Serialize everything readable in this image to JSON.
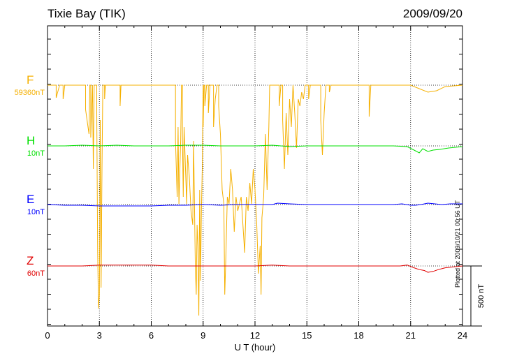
{
  "title": "Tixie Bay (TIK)",
  "date": "2009/09/20",
  "footer": "Plotted at 2009/10/21 00:56 UT",
  "chart_data": {
    "type": "line",
    "title": "Tixie Bay (TIK)",
    "date": "2009/09/20",
    "xlabel": "U T (hour)",
    "xlim": [
      0,
      24
    ],
    "x_ticks": [
      "0",
      "3",
      "6",
      "9",
      "12",
      "15",
      "18",
      "21",
      "24"
    ],
    "scale_bar_label": "500 nT",
    "grid": true,
    "series": [
      {
        "name": "F",
        "scale_label": "59360nT",
        "color": "#f5b000",
        "points": [
          [
            0,
            0
          ],
          [
            0.5,
            0
          ],
          [
            0.5,
            -18
          ],
          [
            0.7,
            0
          ],
          [
            0.9,
            0
          ],
          [
            0.9,
            -20
          ],
          [
            1.0,
            0
          ],
          [
            2.2,
            0
          ],
          [
            2.2,
            -35
          ],
          [
            2.4,
            -70
          ],
          [
            2.45,
            0
          ],
          [
            2.5,
            0
          ],
          [
            2.5,
            -75
          ],
          [
            2.6,
            0
          ],
          [
            2.65,
            -120
          ],
          [
            2.7,
            0
          ],
          [
            2.85,
            0
          ],
          [
            2.85,
            -40
          ],
          [
            2.9,
            -240
          ],
          [
            2.95,
            -320
          ],
          [
            3.0,
            -300
          ],
          [
            3.05,
            -50
          ],
          [
            3.1,
            -290
          ],
          [
            3.15,
            -120
          ],
          [
            3.2,
            0
          ],
          [
            3.3,
            0
          ],
          [
            3.3,
            -20
          ],
          [
            3.35,
            0
          ],
          [
            4.2,
            0
          ],
          [
            4.2,
            -30
          ],
          [
            4.25,
            0
          ],
          [
            7.4,
            0
          ],
          [
            7.4,
            -80
          ],
          [
            7.5,
            -160
          ],
          [
            7.55,
            -60
          ],
          [
            7.6,
            -170
          ],
          [
            7.7,
            -80
          ],
          [
            7.75,
            0
          ],
          [
            7.8,
            0
          ],
          [
            7.8,
            -70
          ],
          [
            7.85,
            -160
          ],
          [
            7.9,
            -60
          ],
          [
            8.05,
            -170
          ],
          [
            8.1,
            -100
          ],
          [
            8.2,
            -130
          ],
          [
            8.3,
            -180
          ],
          [
            8.4,
            -200
          ],
          [
            8.45,
            -80
          ],
          [
            8.55,
            -260
          ],
          [
            8.6,
            -300
          ],
          [
            8.65,
            -200
          ],
          [
            8.7,
            -230
          ],
          [
            8.75,
            -330
          ],
          [
            8.8,
            -150
          ],
          [
            8.85,
            -280
          ],
          [
            8.9,
            -180
          ],
          [
            8.95,
            -120
          ],
          [
            9.0,
            0
          ],
          [
            9.0,
            -60
          ],
          [
            9.05,
            0
          ],
          [
            9.1,
            0
          ],
          [
            9.1,
            -30
          ],
          [
            9.2,
            0
          ],
          [
            9.3,
            0
          ],
          [
            9.3,
            -40
          ],
          [
            9.4,
            0
          ],
          [
            9.6,
            0
          ],
          [
            9.6,
            -60
          ],
          [
            9.7,
            -20
          ],
          [
            9.8,
            0
          ],
          [
            9.9,
            0
          ],
          [
            9.9,
            -30
          ],
          [
            10.0,
            -70
          ],
          [
            10.1,
            -150
          ],
          [
            10.2,
            -170
          ],
          [
            10.25,
            -300
          ],
          [
            10.3,
            -260
          ],
          [
            10.4,
            -160
          ],
          [
            10.5,
            -170
          ],
          [
            10.6,
            -120
          ],
          [
            10.7,
            -150
          ],
          [
            10.8,
            -210
          ],
          [
            10.9,
            -160
          ],
          [
            11.0,
            -180
          ],
          [
            11.2,
            -160
          ],
          [
            11.3,
            -200
          ],
          [
            11.4,
            -240
          ],
          [
            11.5,
            -160
          ],
          [
            11.6,
            -180
          ],
          [
            11.7,
            -140
          ],
          [
            11.8,
            -170
          ],
          [
            11.9,
            -120
          ],
          [
            12.0,
            -150
          ],
          [
            12.1,
            -200
          ],
          [
            12.2,
            -270
          ],
          [
            12.3,
            -230
          ],
          [
            12.35,
            -300
          ],
          [
            12.4,
            -190
          ],
          [
            12.5,
            -160
          ],
          [
            12.6,
            -70
          ],
          [
            12.7,
            -150
          ],
          [
            12.8,
            -60
          ],
          [
            12.85,
            0
          ],
          [
            13.4,
            0
          ],
          [
            13.4,
            -30
          ],
          [
            13.5,
            0
          ],
          [
            13.6,
            0
          ],
          [
            13.6,
            -50
          ],
          [
            13.7,
            -120
          ],
          [
            13.8,
            -40
          ],
          [
            13.9,
            -100
          ],
          [
            14.0,
            -20
          ],
          [
            14.1,
            -60
          ],
          [
            14.2,
            0
          ],
          [
            14.3,
            -40
          ],
          [
            14.4,
            -90
          ],
          [
            14.5,
            -20
          ],
          [
            14.6,
            -30
          ],
          [
            14.7,
            -10
          ],
          [
            14.8,
            -20
          ],
          [
            14.9,
            0
          ],
          [
            15.1,
            0
          ],
          [
            15.1,
            -20
          ],
          [
            15.2,
            0
          ],
          [
            15.8,
            0
          ],
          [
            15.8,
            -50
          ],
          [
            15.9,
            -100
          ],
          [
            16.0,
            -40
          ],
          [
            16.1,
            0
          ],
          [
            16.3,
            0
          ],
          [
            16.3,
            -10
          ],
          [
            16.4,
            0
          ],
          [
            18.6,
            0
          ],
          [
            18.6,
            -45
          ],
          [
            18.7,
            0
          ],
          [
            21.0,
            0
          ],
          [
            21.5,
            -5
          ],
          [
            22.0,
            -10
          ],
          [
            22.5,
            -8
          ],
          [
            23.0,
            -2
          ],
          [
            24.0,
            0
          ]
        ]
      },
      {
        "name": "H",
        "scale_label": "10nT",
        "color": "#00e000",
        "points": [
          [
            0,
            0
          ],
          [
            1,
            0
          ],
          [
            2,
            1
          ],
          [
            3,
            0
          ],
          [
            4,
            1
          ],
          [
            5,
            0
          ],
          [
            6,
            0
          ],
          [
            7,
            0
          ],
          [
            8,
            1
          ],
          [
            9,
            1
          ],
          [
            10,
            0
          ],
          [
            11,
            0
          ],
          [
            12,
            0
          ],
          [
            13,
            1
          ],
          [
            14,
            -1
          ],
          [
            15,
            0
          ],
          [
            16,
            0
          ],
          [
            17,
            0
          ],
          [
            18,
            0
          ],
          [
            19,
            0
          ],
          [
            20,
            0
          ],
          [
            20.8,
            -1
          ],
          [
            21.2,
            -6
          ],
          [
            21.5,
            -10
          ],
          [
            21.7,
            -4
          ],
          [
            22.0,
            -8
          ],
          [
            22.3,
            -6
          ],
          [
            22.7,
            -5
          ],
          [
            23.2,
            -3
          ],
          [
            23.6,
            -2
          ],
          [
            24,
            -1
          ]
        ]
      },
      {
        "name": "E",
        "scale_label": "10nT",
        "color": "#0000ff",
        "points": [
          [
            0,
            0
          ],
          [
            1,
            -1
          ],
          [
            2,
            -1
          ],
          [
            3,
            -2
          ],
          [
            4,
            -2
          ],
          [
            5,
            -2
          ],
          [
            6,
            -2
          ],
          [
            7,
            -1
          ],
          [
            8,
            -1
          ],
          [
            9,
            0
          ],
          [
            10,
            -1
          ],
          [
            11,
            0
          ],
          [
            12,
            0
          ],
          [
            13,
            0
          ],
          [
            13.3,
            2
          ],
          [
            14,
            1
          ],
          [
            15,
            0
          ],
          [
            16,
            0
          ],
          [
            17,
            0
          ],
          [
            18,
            0
          ],
          [
            19,
            0
          ],
          [
            20,
            0
          ],
          [
            20.5,
            1
          ],
          [
            21,
            -1
          ],
          [
            21.3,
            -1
          ],
          [
            21.6,
            0
          ],
          [
            22,
            2
          ],
          [
            22.4,
            1
          ],
          [
            22.8,
            0
          ],
          [
            23.3,
            1
          ],
          [
            23.7,
            1
          ],
          [
            24,
            1
          ]
        ]
      },
      {
        "name": "Z",
        "scale_label": "60nT",
        "color": "#e00000",
        "points": [
          [
            0,
            0
          ],
          [
            1,
            0
          ],
          [
            2,
            0
          ],
          [
            3,
            1
          ],
          [
            4,
            1
          ],
          [
            5,
            1
          ],
          [
            6,
            1
          ],
          [
            7,
            0
          ],
          [
            8,
            0
          ],
          [
            9,
            0
          ],
          [
            10,
            0
          ],
          [
            11,
            0
          ],
          [
            12,
            0
          ],
          [
            13,
            1
          ],
          [
            14,
            0
          ],
          [
            15,
            0
          ],
          [
            16,
            0
          ],
          [
            17,
            0
          ],
          [
            18,
            0
          ],
          [
            19,
            0
          ],
          [
            20,
            0
          ],
          [
            20.4,
            0
          ],
          [
            20.8,
            1
          ],
          [
            21.2,
            -2
          ],
          [
            21.5,
            -4
          ],
          [
            21.8,
            -5
          ],
          [
            22.0,
            -7
          ],
          [
            22.3,
            -6
          ],
          [
            22.6,
            -4
          ],
          [
            23.0,
            -2
          ],
          [
            23.5,
            -1
          ],
          [
            24,
            0
          ]
        ]
      }
    ]
  }
}
